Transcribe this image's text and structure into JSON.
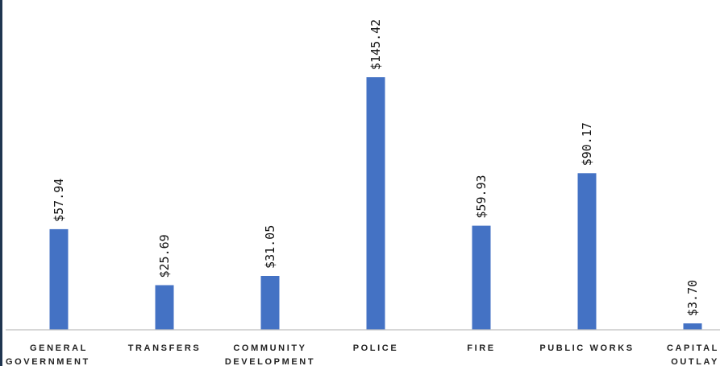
{
  "chart_data": {
    "type": "bar",
    "title": "",
    "xlabel": "",
    "ylabel": "",
    "categories": [
      [
        "GENERAL",
        "GOVERNMENT"
      ],
      [
        "TRANSFERS"
      ],
      [
        "COMMUNITY",
        "DEVELOPMENT"
      ],
      [
        "POLICE"
      ],
      [
        "FIRE"
      ],
      [
        "PUBLIC WORKS"
      ],
      [
        "CAPITAL",
        "OUTLAY"
      ]
    ],
    "series": [
      {
        "values": [
          57.94,
          25.69,
          31.05,
          145.42,
          59.93,
          90.17,
          3.7
        ],
        "data_labels": [
          "$57.94",
          "$25.69",
          "$31.05",
          "$145.42",
          "$59.93",
          "$90.17",
          "$3.70"
        ],
        "color": "#4472c4"
      }
    ],
    "ylim": [
      0,
      145.42
    ],
    "grid": false,
    "legend": "none"
  },
  "colors": {
    "bar": "#4472c4",
    "axis": "#bfbfbf",
    "frame": "#1f3550"
  }
}
